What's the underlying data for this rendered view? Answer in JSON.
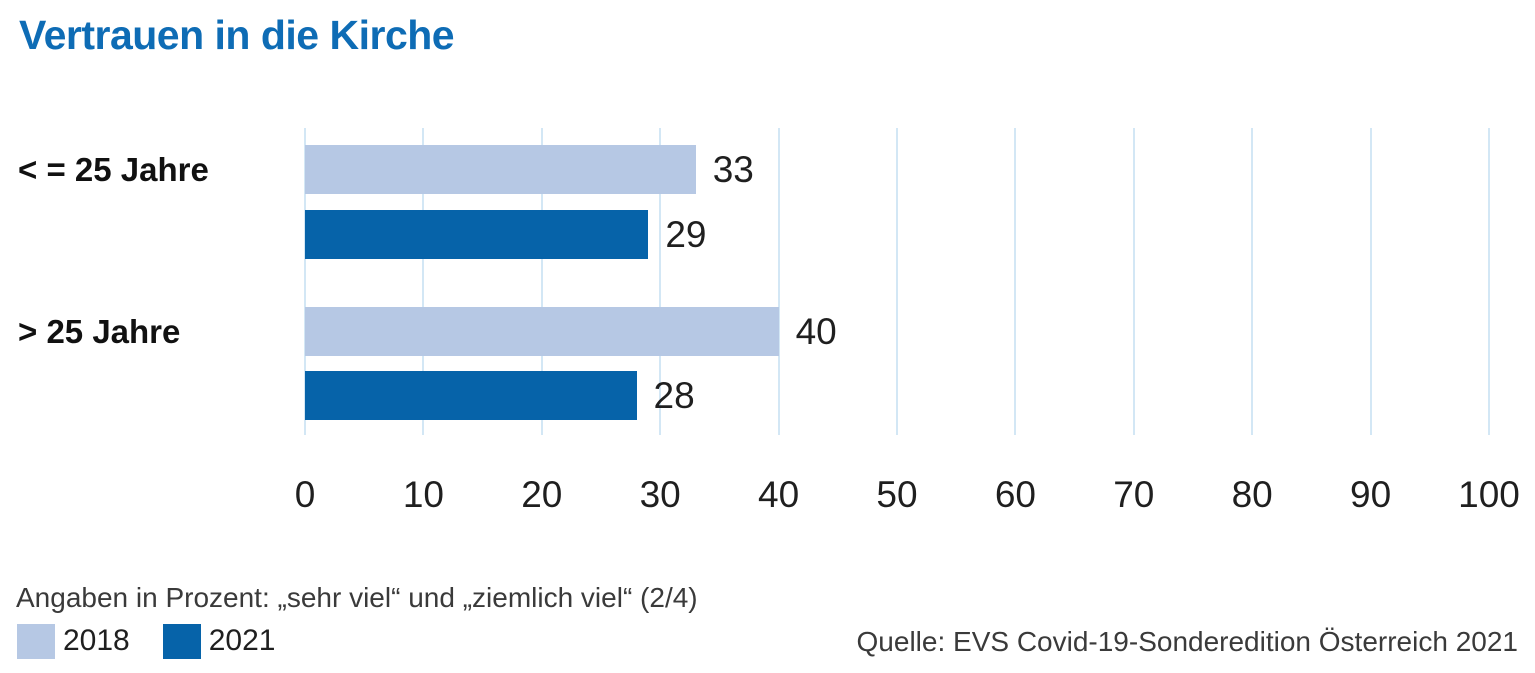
{
  "title": "Vertrauen in die Kirche",
  "chart_data": {
    "type": "bar",
    "orientation": "horizontal",
    "title": "Vertrauen in die Kirche",
    "categories": [
      "< = 25 Jahre",
      "> 25 Jahre"
    ],
    "series": [
      {
        "name": "2018",
        "color": "#b6c8e4",
        "values": [
          33,
          40
        ]
      },
      {
        "name": "2021",
        "color": "#0663a9",
        "values": [
          29,
          28
        ]
      }
    ],
    "xlim": [
      0,
      100
    ],
    "xticks": [
      0,
      10,
      20,
      30,
      40,
      50,
      60,
      70,
      80,
      90,
      100
    ],
    "grid": "vertical",
    "value_labels": true,
    "legend_position": "bottom-left",
    "unit": "percent"
  },
  "footnote": "Angaben in Prozent: „sehr viel“ und „ziemlich viel“ (2/4)",
  "source": "Quelle: EVS Covid-19-Sonderedition Österreich 2021",
  "colors": {
    "title": "#0e6cb5",
    "grid": "#d3e7f5",
    "bar_2018": "#b6c8e4",
    "bar_2021": "#0663a9",
    "text": "#1f1f1f",
    "muted": "#3a3a3a"
  }
}
